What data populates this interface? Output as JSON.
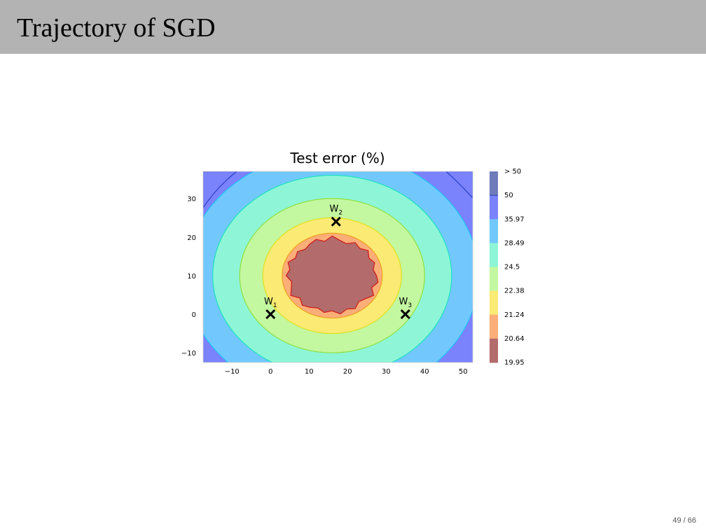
{
  "slide": {
    "title": "Trajectory of SGD",
    "page_number": "49 / 66"
  },
  "chart_data": {
    "type": "contour",
    "title": "Test error (%)",
    "xlabel": "",
    "ylabel": "",
    "xlim": [
      -17.5,
      52.5
    ],
    "ylim": [
      -12.5,
      37
    ],
    "x_ticks": [
      -10,
      0,
      10,
      20,
      30,
      40,
      50
    ],
    "x_tick_labels": [
      "−10",
      "0",
      "10",
      "20",
      "30",
      "40",
      "50"
    ],
    "y_ticks": [
      -10,
      0,
      10,
      20,
      30
    ],
    "y_tick_labels": [
      "−10",
      "0",
      "10",
      "20",
      "30"
    ],
    "levels": [
      19.95,
      20.64,
      21.24,
      22.38,
      24.5,
      28.49,
      35.97,
      50
    ],
    "colorbar_labels": [
      "> 50",
      "50",
      "35.97",
      "28.49",
      "24.5",
      "22.38",
      "21.24",
      "20.64",
      "19.95"
    ],
    "colors": [
      "#b36b6b",
      "#fbae78",
      "#fbea74",
      "#c3f7a0",
      "#8ef6d6",
      "#72c8fc",
      "#7a82fc",
      "#6f7bbb"
    ],
    "contour_center": [
      16,
      10
    ],
    "level_radii": [
      {
        "level": 20.64,
        "rx": 13,
        "ry": 11
      },
      {
        "level": 21.24,
        "rx": 18,
        "ry": 15
      },
      {
        "level": 22.38,
        "rx": 24,
        "ry": 20
      },
      {
        "level": 24.5,
        "rx": 31,
        "ry": 26
      },
      {
        "level": 28.49,
        "rx": 38,
        "ry": 32
      },
      {
        "level": 35.97,
        "rx": 46,
        "ry": 40
      }
    ],
    "points": [
      {
        "label": "W",
        "sub": "1",
        "x": 0,
        "y": 0
      },
      {
        "label": "W",
        "sub": "2",
        "x": 17,
        "y": 24
      },
      {
        "label": "W",
        "sub": "3",
        "x": 35,
        "y": 0
      }
    ],
    "grid": false
  }
}
